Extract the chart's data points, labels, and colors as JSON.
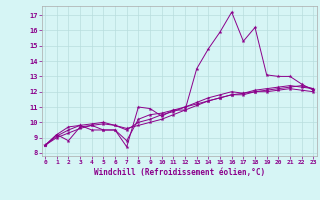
{
  "xlabel": "Windchill (Refroidissement éolien,°C)",
  "bg_color": "#d6f5f5",
  "grid_color": "#b8dede",
  "line_color": "#8b008b",
  "x_ticks": [
    0,
    1,
    2,
    3,
    4,
    5,
    6,
    7,
    8,
    9,
    10,
    11,
    12,
    13,
    14,
    15,
    16,
    17,
    18,
    19,
    20,
    21,
    22,
    23
  ],
  "y_ticks": [
    8,
    9,
    10,
    11,
    12,
    13,
    14,
    15,
    16,
    17
  ],
  "xlim": [
    -0.3,
    23.3
  ],
  "ylim": [
    7.8,
    17.6
  ],
  "series1_x": [
    0,
    1,
    2,
    3,
    4,
    5,
    6,
    7,
    8,
    9,
    10,
    11,
    12,
    13,
    14,
    15,
    16,
    17,
    18,
    19,
    20,
    21,
    22,
    23
  ],
  "series1_y": [
    8.5,
    9.2,
    8.8,
    9.7,
    9.8,
    9.5,
    9.5,
    8.4,
    11.0,
    10.9,
    10.4,
    10.8,
    10.8,
    13.5,
    14.8,
    15.9,
    17.2,
    15.3,
    16.2,
    13.1,
    13.0,
    13.0,
    12.5,
    12.1
  ],
  "series2_x": [
    0,
    1,
    2,
    3,
    4,
    5,
    6,
    7,
    8,
    9,
    10,
    11,
    12,
    13,
    14,
    15,
    16,
    17,
    18,
    19,
    20,
    21,
    22,
    23
  ],
  "series2_y": [
    8.5,
    9.2,
    9.7,
    9.8,
    9.5,
    9.5,
    9.5,
    8.8,
    10.2,
    10.5,
    10.6,
    10.8,
    11.0,
    11.2,
    11.4,
    11.6,
    11.8,
    11.9,
    12.0,
    12.1,
    12.2,
    12.3,
    12.4,
    12.2
  ],
  "series3_x": [
    0,
    1,
    2,
    3,
    4,
    5,
    6,
    7,
    8,
    9,
    10,
    11,
    12,
    13,
    14,
    15,
    16,
    17,
    18,
    19,
    20,
    21,
    22,
    23
  ],
  "series3_y": [
    8.5,
    9.1,
    9.5,
    9.8,
    9.9,
    10.0,
    9.8,
    9.5,
    10.0,
    10.2,
    10.5,
    10.7,
    11.0,
    11.3,
    11.6,
    11.8,
    12.0,
    11.9,
    12.1,
    12.2,
    12.3,
    12.4,
    12.3,
    12.2
  ],
  "series4_x": [
    0,
    1,
    2,
    3,
    4,
    5,
    6,
    7,
    8,
    9,
    10,
    11,
    12,
    13,
    14,
    15,
    16,
    17,
    18,
    19,
    20,
    21,
    22,
    23
  ],
  "series4_y": [
    8.5,
    9.0,
    9.3,
    9.6,
    9.8,
    9.9,
    9.8,
    9.6,
    9.8,
    10.0,
    10.2,
    10.5,
    10.8,
    11.1,
    11.4,
    11.6,
    11.8,
    11.8,
    12.0,
    12.0,
    12.1,
    12.2,
    12.1,
    12.0
  ]
}
